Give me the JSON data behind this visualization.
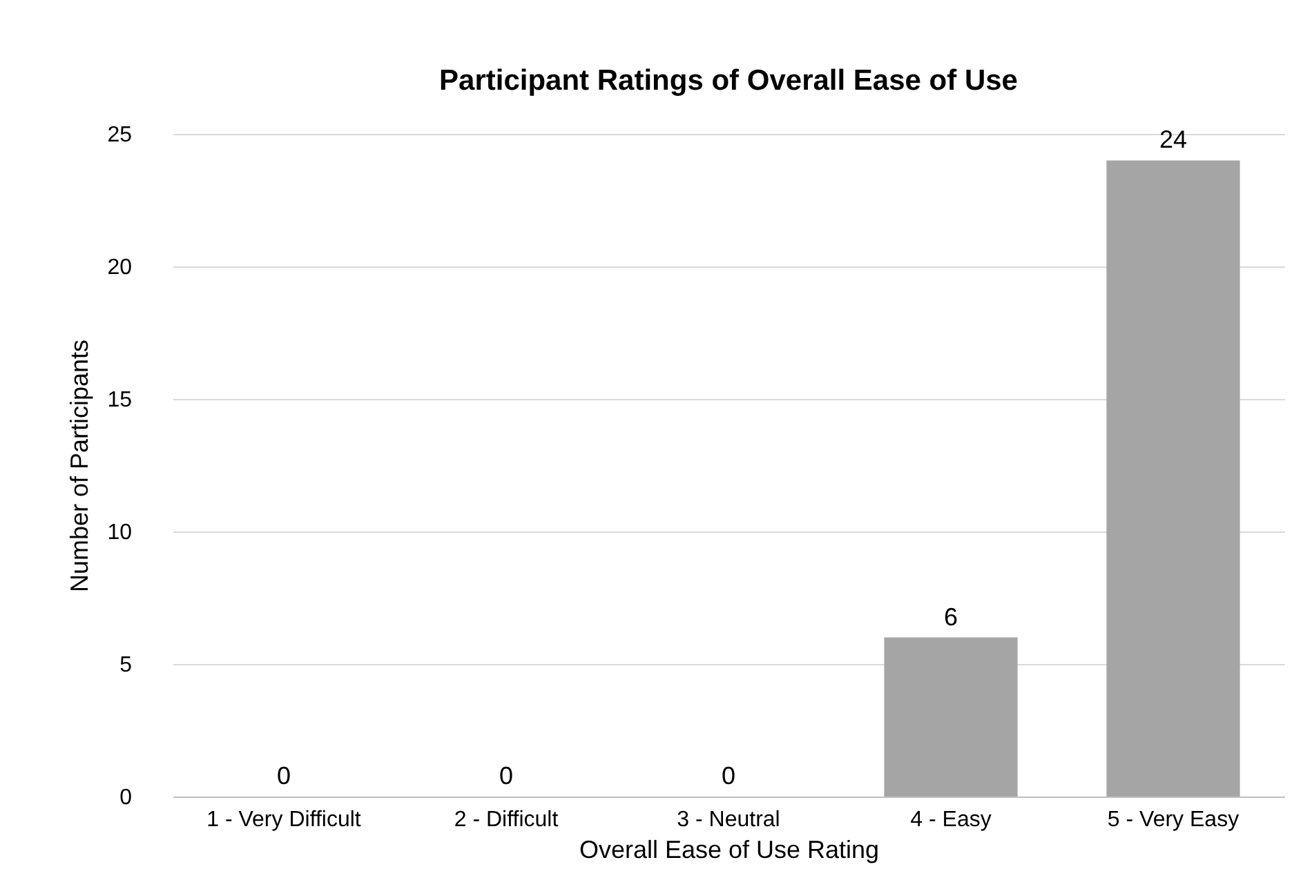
{
  "chart_data": {
    "type": "bar",
    "title": "Participant Ratings of Overall Ease of Use",
    "xlabel": "Overall Ease of Use Rating",
    "ylabel": "Number of Participants",
    "categories": [
      "1 - Very Difficult",
      "2 - Difficult",
      "3 - Neutral",
      "4 - Easy",
      "5 - Very Easy"
    ],
    "values": [
      0,
      0,
      0,
      6,
      24
    ],
    "color": "#a5a5a5",
    "ylim": [
      0,
      25
    ],
    "yticks": [
      0,
      5,
      10,
      15,
      20,
      25
    ],
    "grid": "y",
    "data_labels": true
  }
}
